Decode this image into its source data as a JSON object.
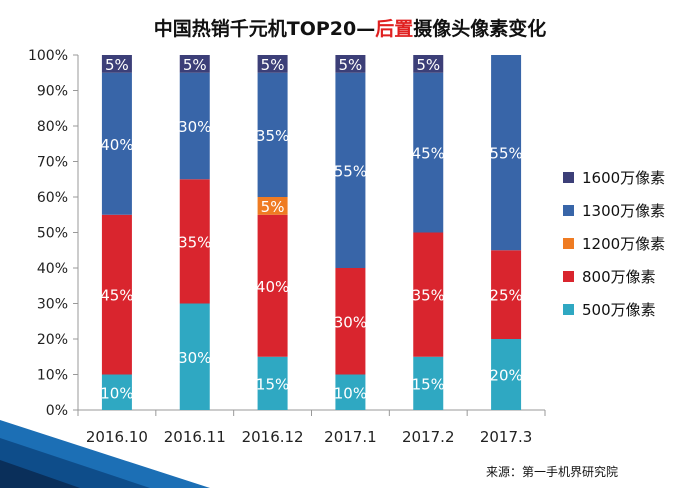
{
  "title": {
    "part1": "中国热销千元机TOP20—",
    "part2": "后置",
    "part3": "摄像头像素变化"
  },
  "source": "来源：第一手机界研究院",
  "colors": {
    "500万像素": "#2fa8c2",
    "800万像素": "#d9252e",
    "1200万像素": "#ef7b22",
    "1300万像素": "#3865a8",
    "1600万像素": "#3c3f78"
  },
  "chart_data": {
    "type": "bar",
    "stacked": true,
    "categories": [
      "2016.10",
      "2016.11",
      "2016.12",
      "2017.1",
      "2017.2",
      "2017.3"
    ],
    "series": [
      {
        "name": "500万像素",
        "values": [
          10,
          30,
          15,
          10,
          15,
          20
        ]
      },
      {
        "name": "800万像素",
        "values": [
          45,
          35,
          40,
          30,
          35,
          25
        ]
      },
      {
        "name": "1200万像素",
        "values": [
          0,
          0,
          5,
          0,
          0,
          0
        ]
      },
      {
        "name": "1300万像素",
        "values": [
          40,
          30,
          35,
          55,
          45,
          55
        ]
      },
      {
        "name": "1600万像素",
        "values": [
          5,
          5,
          5,
          5,
          5,
          0
        ]
      }
    ],
    "ylim": [
      0,
      100
    ],
    "yticks": [
      "0%",
      "10%",
      "20%",
      "30%",
      "40%",
      "50%",
      "60%",
      "70%",
      "80%",
      "90%",
      "100%"
    ],
    "grid": false,
    "legend_position": "right",
    "legend_order": [
      "1600万像素",
      "1300万像素",
      "1200万像素",
      "800万像素",
      "500万像素"
    ]
  }
}
